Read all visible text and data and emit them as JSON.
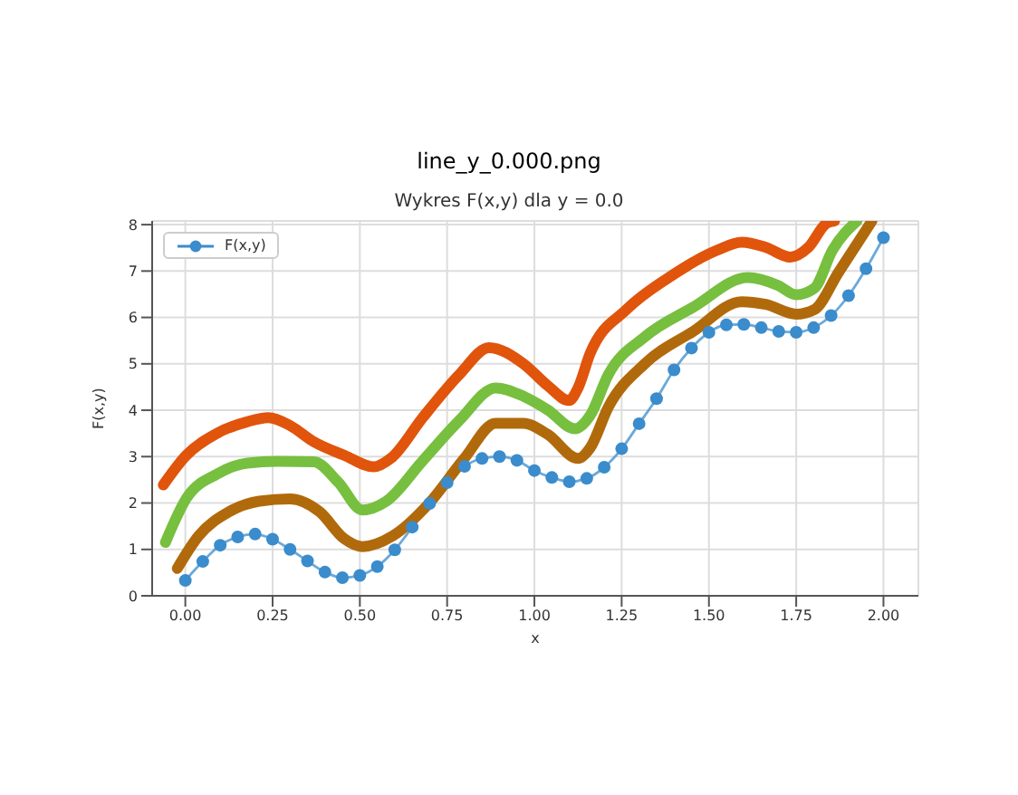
{
  "chart_data": {
    "type": "line",
    "title": "line_y_0.000.png",
    "subtitle": "Wykres F(x,y) dla y = 0.0",
    "xlabel": "x",
    "ylabel": "F(x,y)",
    "xlim": [
      -0.095,
      2.1
    ],
    "ylim": [
      0,
      8.08
    ],
    "xticks": [
      {
        "value": 0,
        "label": "0.00"
      },
      {
        "value": 0.25,
        "label": "0.25"
      },
      {
        "value": 0.5,
        "label": "0.50"
      },
      {
        "value": 0.75,
        "label": "0.75"
      },
      {
        "value": 1,
        "label": "1.00"
      },
      {
        "value": 1.25,
        "label": "1.25"
      },
      {
        "value": 1.5,
        "label": "1.50"
      },
      {
        "value": 1.75,
        "label": "1.75"
      },
      {
        "value": 2,
        "label": "2.00"
      }
    ],
    "yticks": [
      0,
      1,
      2,
      3,
      4,
      5,
      6,
      7,
      8
    ],
    "grid": true,
    "legend": "top left",
    "series": [
      {
        "name": "F(x,y)",
        "color": "#3a8ccc",
        "marker": "circle",
        "x": [
          0,
          0.05,
          0.1,
          0.15,
          0.2,
          0.25,
          0.3,
          0.35,
          0.4,
          0.45,
          0.5,
          0.55,
          0.6,
          0.65,
          0.7,
          0.75,
          0.8,
          0.85,
          0.9,
          0.95,
          1,
          1.05,
          1.1,
          1.15,
          1.2,
          1.25,
          1.3,
          1.35,
          1.4,
          1.45,
          1.5,
          1.55,
          1.6,
          1.65,
          1.7,
          1.75,
          1.8,
          1.85,
          1.9,
          1.95,
          2
        ],
        "values": [
          0.33,
          0.74,
          1.09,
          1.27,
          1.33,
          1.22,
          1.0,
          0.75,
          0.51,
          0.39,
          0.44,
          0.63,
          0.99,
          1.48,
          1.99,
          2.44,
          2.79,
          2.96,
          3.0,
          2.92,
          2.7,
          2.55,
          2.46,
          2.53,
          2.77,
          3.17,
          3.71,
          4.25,
          4.87,
          5.34,
          5.68,
          5.84,
          5.85,
          5.78,
          5.7,
          5.68,
          5.78,
          6.04,
          6.47,
          7.05,
          7.72
        ]
      },
      {
        "color": "#e0540c",
        "marker": "none",
        "x": [
          -0.063,
          0.003,
          0.09,
          0.177,
          0.238,
          0.3,
          0.368,
          0.455,
          0.54,
          0.59,
          0.68,
          0.785,
          0.87,
          0.969,
          1.038,
          1.099,
          1.125,
          1.16,
          1.264,
          1.385,
          1.524,
          1.594,
          1.663,
          1.733,
          1.785,
          1.837,
          1.86
        ],
        "values": [
          2.39,
          3.03,
          3.5,
          3.75,
          3.84,
          3.67,
          3.32,
          3.03,
          2.78,
          2.97,
          3.84,
          4.77,
          5.35,
          5.0,
          4.53,
          4.21,
          4.48,
          5.23,
          6.17,
          6.86,
          7.45,
          7.62,
          7.51,
          7.3,
          7.51,
          8.03,
          8.08
        ]
      },
      {
        "color": "#77bf3f",
        "marker": "none",
        "x": [
          -0.057,
          0.003,
          0.09,
          0.177,
          0.264,
          0.368,
          0.438,
          0.507,
          0.576,
          0.68,
          0.785,
          0.889,
          0.969,
          1.038,
          1.116,
          1.16,
          1.212,
          1.316,
          1.455,
          1.611,
          1.698,
          1.75,
          1.802,
          1.854,
          1.924
        ],
        "values": [
          1.15,
          2.1,
          2.62,
          2.86,
          2.9,
          2.89,
          2.45,
          1.85,
          2.04,
          2.91,
          3.78,
          4.48,
          4.3,
          4.01,
          3.6,
          3.89,
          4.77,
          5.58,
          6.22,
          6.86,
          6.69,
          6.49,
          6.63,
          7.45,
          8.08
        ]
      },
      {
        "color": "#b06a0c",
        "marker": "none",
        "x": [
          -0.023,
          0.038,
          0.125,
          0.212,
          0.3,
          0.385,
          0.455,
          0.507,
          0.594,
          0.698,
          0.8,
          0.889,
          0.969,
          1.038,
          1.125,
          1.16,
          1.212,
          1.316,
          1.455,
          1.594,
          1.663,
          1.75,
          1.802,
          1.872,
          1.967
        ],
        "values": [
          0.59,
          1.29,
          1.81,
          2.04,
          2.09,
          1.81,
          1.23,
          1.06,
          1.29,
          1.99,
          2.97,
          3.72,
          3.72,
          3.48,
          2.96,
          3.19,
          4.07,
          5.0,
          5.7,
          6.34,
          6.28,
          6.07,
          6.17,
          6.98,
          8.08
        ]
      }
    ]
  }
}
